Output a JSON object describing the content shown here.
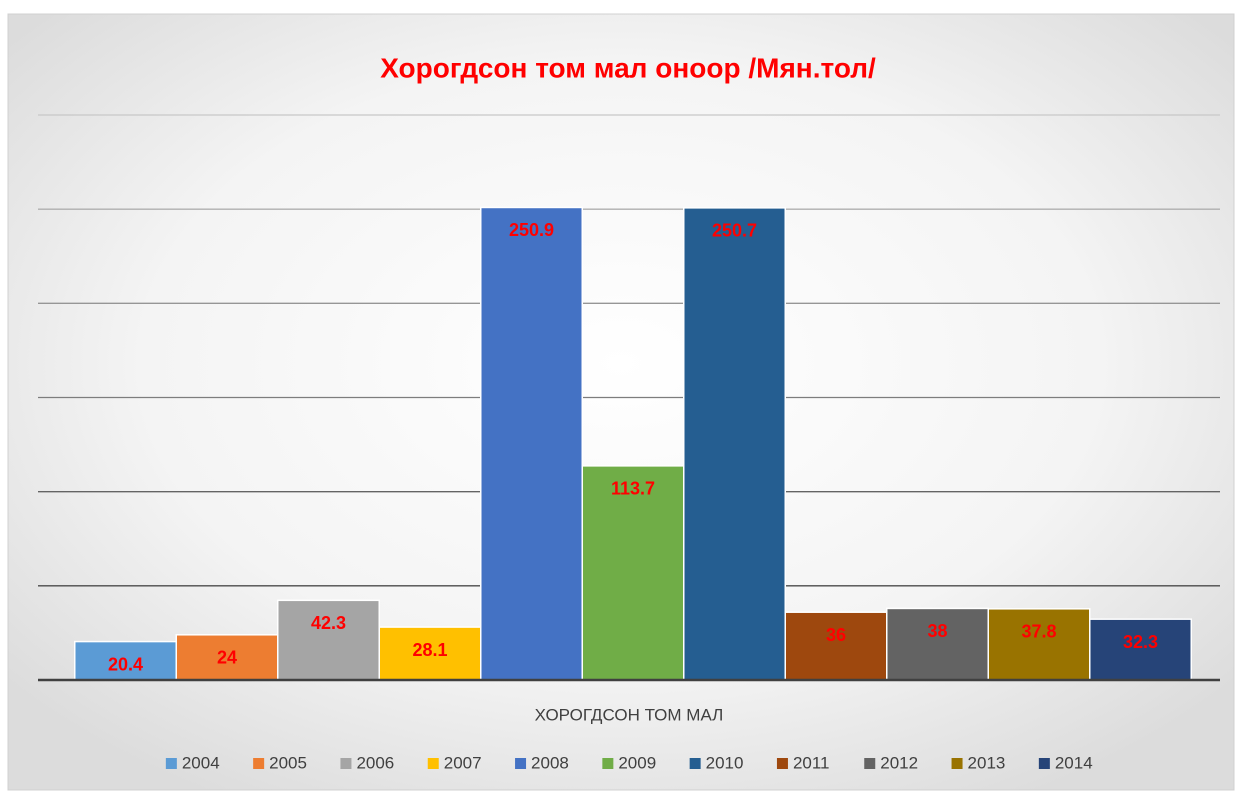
{
  "chart_data": {
    "type": "bar",
    "title": "Хорогдсон том мал оноор /Мян.тол/",
    "categories": [
      "ХОРОГДСОН ТОМ МАЛ"
    ],
    "series": [
      {
        "name": "2004",
        "color": "#5b9bd5",
        "values": [
          20.4
        ]
      },
      {
        "name": "2005",
        "color": "#ed7d31",
        "values": [
          24
        ]
      },
      {
        "name": "2006",
        "color": "#a5a5a5",
        "values": [
          42.3
        ]
      },
      {
        "name": "2007",
        "color": "#ffc000",
        "values": [
          28.1
        ]
      },
      {
        "name": "2008",
        "color": "#4472c4",
        "values": [
          250.9
        ]
      },
      {
        "name": "2009",
        "color": "#70ad47",
        "values": [
          113.7
        ]
      },
      {
        "name": "2010",
        "color": "#255e91",
        "values": [
          250.7
        ]
      },
      {
        "name": "2011",
        "color": "#9e480e",
        "values": [
          36
        ]
      },
      {
        "name": "2012",
        "color": "#636363",
        "values": [
          38
        ]
      },
      {
        "name": "2013",
        "color": "#997300",
        "values": [
          37.8
        ]
      },
      {
        "name": "2014",
        "color": "#264478",
        "values": [
          32.3
        ]
      }
    ],
    "ylim": [
      0,
      300
    ],
    "yticks": [
      0,
      50,
      100,
      150,
      200,
      250,
      300
    ],
    "grid": true,
    "legend": "bottom"
  }
}
